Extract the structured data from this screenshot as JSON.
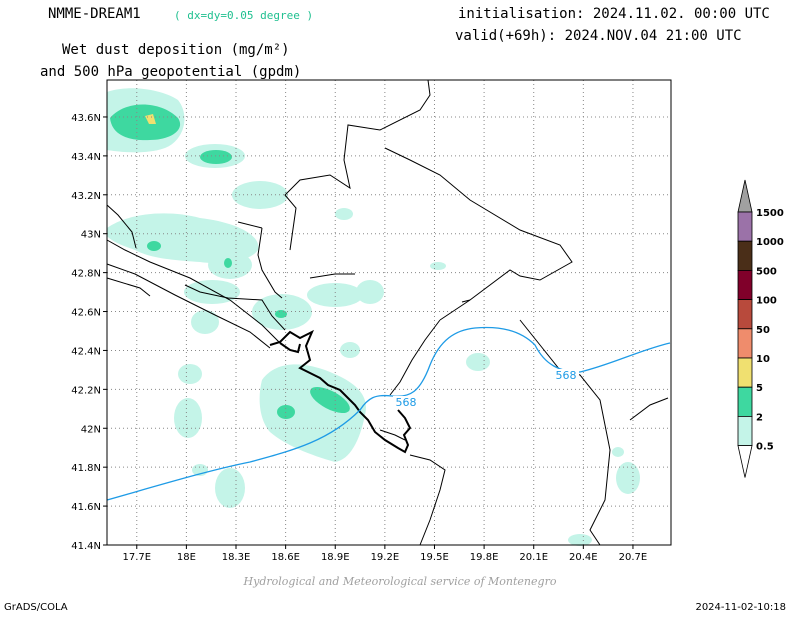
{
  "header": {
    "model": "NMME-DREAM1",
    "resolution": "( dx=dy=0.05 degree )",
    "title_line1": "Wet dust deposition (mg/m²)",
    "title_line2": "and 500 hPa geopotential (gpdm)",
    "init": "initialisation: 2024.11.02. 00:00 UTC",
    "valid": "valid(+69h): 2024.NOV.04 21:00 UTC"
  },
  "map": {
    "lon_labels": [
      "17.7E",
      "18E",
      "18.3E",
      "18.6E",
      "18.9E",
      "19.2E",
      "19.5E",
      "19.8E",
      "20.1E",
      "20.4E",
      "20.7E"
    ],
    "lon_values": [
      17.7,
      18.0,
      18.3,
      18.6,
      18.9,
      19.2,
      19.5,
      19.8,
      20.1,
      20.4,
      20.7
    ],
    "lat_labels": [
      "43.6N",
      "43.4N",
      "43.2N",
      "43N",
      "42.8N",
      "42.6N",
      "42.4N",
      "42.2N",
      "42N",
      "41.8N",
      "41.6N",
      "41.4N"
    ],
    "lat_values": [
      43.6,
      43.4,
      43.2,
      43.0,
      42.8,
      42.6,
      42.4,
      42.2,
      42.0,
      41.8,
      41.6,
      41.4
    ],
    "lon_range": [
      17.52,
      20.93
    ],
    "lat_range": [
      41.4,
      43.79
    ],
    "grid": true,
    "contour_label": "568",
    "contour_color": "#1e9be6",
    "land_boundary_color": "#000000"
  },
  "legend": {
    "levels": [
      {
        "label": "1500",
        "color": "#a0a0a0"
      },
      {
        "label": "1000",
        "color": "#9b72a8"
      },
      {
        "label": "500",
        "color": "#4a2e18"
      },
      {
        "label": "100",
        "color": "#80002a"
      },
      {
        "label": "50",
        "color": "#b84a3c"
      },
      {
        "label": "10",
        "color": "#ef8c6c"
      },
      {
        "label": "5",
        "color": "#f0e070"
      },
      {
        "label": "2",
        "color": "#3ed8a0"
      },
      {
        "label": "0.5",
        "color": "#c4f4e8"
      }
    ]
  },
  "footer": {
    "credit": "Hydrological and Meteorological service of Montenegro",
    "left": "GrADS/COLA",
    "right": "2024-11-02-10:18"
  }
}
